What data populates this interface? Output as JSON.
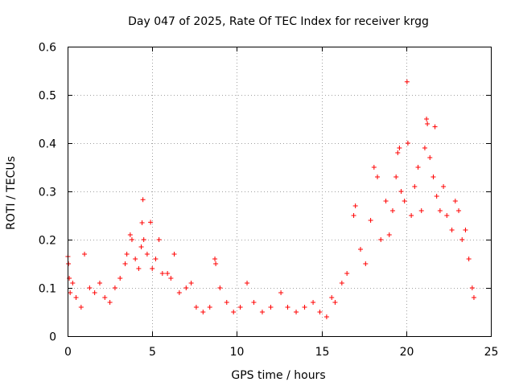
{
  "chart_data": {
    "type": "scatter",
    "title": "Day 047 of 2025, Rate Of TEC Index for receiver krgg",
    "xlabel": "GPS time / hours",
    "ylabel": "ROTI / TECUs",
    "xlim": [
      0,
      25
    ],
    "ylim": [
      0,
      0.6
    ],
    "x_ticks": [
      0,
      5,
      10,
      15,
      20,
      25
    ],
    "x_tick_labels": [
      "0",
      "5",
      "10",
      "15",
      "20",
      "25"
    ],
    "y_ticks": [
      0,
      0.1,
      0.2,
      0.3,
      0.4,
      0.5,
      0.6
    ],
    "y_tick_labels": [
      "0",
      "0.1",
      "0.2",
      "0.3",
      "0.4",
      "0.5",
      "0.6"
    ],
    "grid": true,
    "marker": "plus",
    "color": "#ff0000",
    "series": [
      {
        "name": "ROTI",
        "points": [
          [
            0.02,
            0.165
          ],
          [
            0.05,
            0.15
          ],
          [
            0.1,
            0.12
          ],
          [
            0.15,
            0.09
          ],
          [
            0.3,
            0.11
          ],
          [
            0.5,
            0.08
          ],
          [
            0.8,
            0.06
          ],
          [
            1.0,
            0.17
          ],
          [
            1.3,
            0.1
          ],
          [
            1.6,
            0.09
          ],
          [
            1.9,
            0.11
          ],
          [
            2.2,
            0.08
          ],
          [
            2.5,
            0.07
          ],
          [
            2.8,
            0.1
          ],
          [
            3.1,
            0.12
          ],
          [
            3.4,
            0.15
          ],
          [
            3.5,
            0.17
          ],
          [
            3.7,
            0.21
          ],
          [
            3.8,
            0.2
          ],
          [
            4.0,
            0.16
          ],
          [
            4.2,
            0.14
          ],
          [
            4.35,
            0.185
          ],
          [
            4.4,
            0.235
          ],
          [
            4.45,
            0.283
          ],
          [
            4.5,
            0.2
          ],
          [
            4.7,
            0.17
          ],
          [
            4.9,
            0.236
          ],
          [
            5.0,
            0.14
          ],
          [
            5.2,
            0.16
          ],
          [
            5.4,
            0.2
          ],
          [
            5.6,
            0.13
          ],
          [
            5.9,
            0.13
          ],
          [
            6.1,
            0.12
          ],
          [
            6.3,
            0.17
          ],
          [
            6.6,
            0.09
          ],
          [
            7.0,
            0.1
          ],
          [
            7.3,
            0.11
          ],
          [
            7.6,
            0.06
          ],
          [
            8.0,
            0.05
          ],
          [
            8.4,
            0.06
          ],
          [
            8.7,
            0.16
          ],
          [
            8.75,
            0.15
          ],
          [
            9.0,
            0.1
          ],
          [
            9.4,
            0.07
          ],
          [
            9.8,
            0.05
          ],
          [
            10.2,
            0.06
          ],
          [
            10.6,
            0.11
          ],
          [
            11.0,
            0.07
          ],
          [
            11.5,
            0.05
          ],
          [
            12.0,
            0.06
          ],
          [
            12.6,
            0.09
          ],
          [
            13.0,
            0.06
          ],
          [
            13.5,
            0.05
          ],
          [
            14.0,
            0.06
          ],
          [
            14.5,
            0.07
          ],
          [
            14.9,
            0.05
          ],
          [
            15.3,
            0.04
          ],
          [
            15.6,
            0.08
          ],
          [
            15.8,
            0.07
          ],
          [
            16.2,
            0.11
          ],
          [
            16.5,
            0.13
          ],
          [
            16.9,
            0.25
          ],
          [
            17.0,
            0.27
          ],
          [
            17.3,
            0.18
          ],
          [
            17.6,
            0.15
          ],
          [
            17.9,
            0.24
          ],
          [
            18.1,
            0.35
          ],
          [
            18.3,
            0.33
          ],
          [
            18.5,
            0.2
          ],
          [
            18.8,
            0.28
          ],
          [
            19.0,
            0.21
          ],
          [
            19.2,
            0.26
          ],
          [
            19.4,
            0.33
          ],
          [
            19.5,
            0.38
          ],
          [
            19.6,
            0.39
          ],
          [
            19.7,
            0.3
          ],
          [
            19.9,
            0.28
          ],
          [
            20.05,
            0.527
          ],
          [
            20.1,
            0.4
          ],
          [
            20.3,
            0.25
          ],
          [
            20.5,
            0.31
          ],
          [
            20.7,
            0.35
          ],
          [
            20.9,
            0.26
          ],
          [
            21.1,
            0.39
          ],
          [
            21.2,
            0.45
          ],
          [
            21.25,
            0.44
          ],
          [
            21.4,
            0.37
          ],
          [
            21.6,
            0.33
          ],
          [
            21.7,
            0.434
          ],
          [
            21.8,
            0.29
          ],
          [
            22.0,
            0.26
          ],
          [
            22.2,
            0.31
          ],
          [
            22.4,
            0.25
          ],
          [
            22.7,
            0.22
          ],
          [
            22.9,
            0.28
          ],
          [
            23.1,
            0.26
          ],
          [
            23.3,
            0.2
          ],
          [
            23.5,
            0.22
          ],
          [
            23.7,
            0.16
          ],
          [
            23.9,
            0.1
          ],
          [
            24.0,
            0.08
          ]
        ]
      }
    ]
  }
}
